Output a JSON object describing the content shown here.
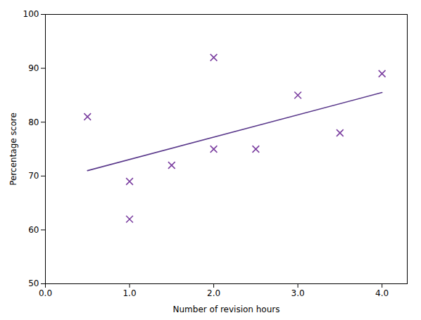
{
  "chart_data": {
    "type": "scatter",
    "xlabel": "Number of revision hours",
    "ylabel": "Percentage score",
    "xlim": [
      0,
      4.3
    ],
    "ylim": [
      50,
      100
    ],
    "xticks": [
      0,
      1,
      2,
      3,
      4
    ],
    "yticks": [
      50,
      60,
      70,
      80,
      90,
      100
    ],
    "grid": false,
    "series": [
      {
        "type": "scatter",
        "color": "#7B3FA0",
        "marker": "x",
        "x": [
          0.5,
          1.0,
          1.0,
          1.5,
          2.0,
          2.0,
          2.5,
          3.0,
          3.5,
          4.0
        ],
        "values": [
          81,
          69,
          62,
          72,
          75,
          92,
          75,
          85,
          78,
          89
        ]
      },
      {
        "type": "line",
        "color": "#5B3A8C",
        "line_style": "solid",
        "x": [
          0.5,
          4.0
        ],
        "values": [
          71.0,
          85.5
        ]
      }
    ]
  }
}
